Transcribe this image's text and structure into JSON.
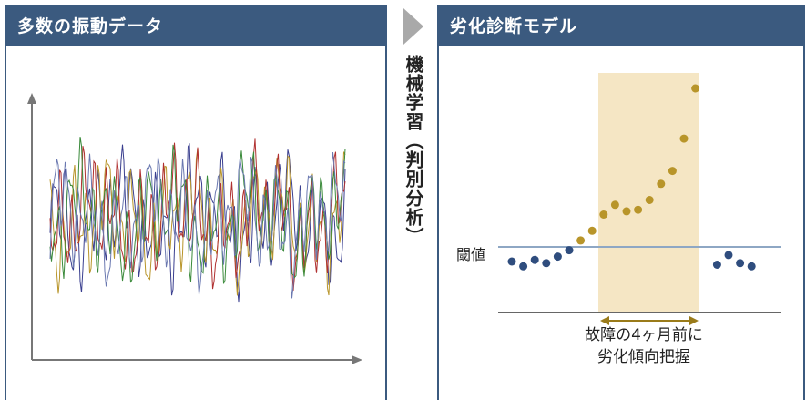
{
  "left_panel": {
    "title": "多数の振動データ"
  },
  "right_panel": {
    "title": "劣化診断モデル"
  },
  "connector": {
    "label": "機械学習（判別分析）"
  },
  "chart": {
    "threshold_label": "閾値",
    "annotation_line1": "故障の4ヶ月前に",
    "annotation_line2": "劣化傾向把握"
  },
  "chart_data": [
    {
      "type": "line",
      "title": "",
      "xlabel": "",
      "ylabel": "",
      "series_count": 5,
      "series_colors": [
        "#3a3f8f",
        "#b8952a",
        "#b03030",
        "#3a8a3a",
        "#6a78b0"
      ],
      "grid": false
    },
    {
      "type": "scatter",
      "title": "",
      "threshold": 0,
      "series": [
        {
          "name": "",
          "color": "#2f4d7e",
          "x": [
            1,
            2,
            3,
            4,
            5,
            6,
            20,
            21,
            22,
            23
          ],
          "y": [
            -0.45,
            -0.6,
            -0.4,
            -0.5,
            -0.3,
            -0.1,
            -0.55,
            -0.25,
            -0.5,
            -0.6
          ]
        },
        {
          "name": "",
          "color": "#b8952a",
          "x": [
            7,
            8,
            9,
            10,
            11,
            12,
            13,
            14,
            15,
            16,
            17
          ],
          "y": [
            0.2,
            0.5,
            1.0,
            1.3,
            1.1,
            1.15,
            1.45,
            1.95,
            2.35,
            3.35,
            4.9
          ]
        }
      ],
      "highlight_range": [
        6.5,
        17.5
      ],
      "colors": {
        "highlight": "#f5e6c4",
        "threshold_line": "#8ea7c4",
        "baseline": "#666666",
        "arrow": "#9a7b1a"
      }
    }
  ]
}
